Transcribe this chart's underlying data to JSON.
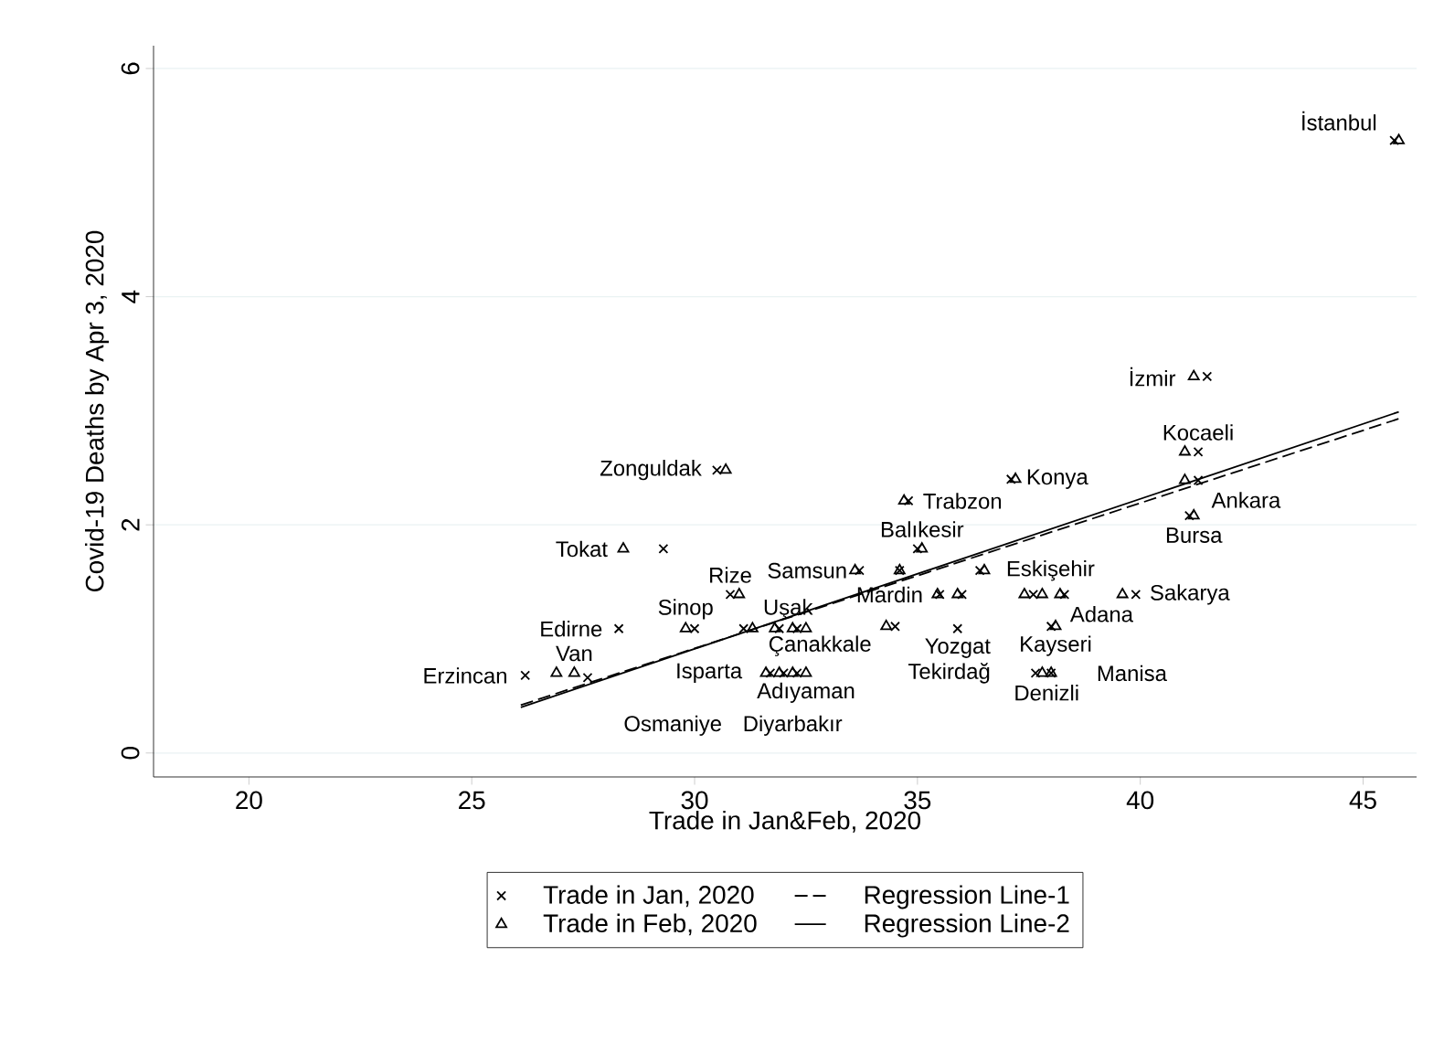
{
  "chart_data": {
    "type": "scatter",
    "xlabel": "Trade in Jan&Feb, 2020",
    "ylabel": "Covid-19 Deaths by Apr 3, 2020",
    "xlim": [
      17.86,
      46.2
    ],
    "ylim": [
      -0.21,
      6.2
    ],
    "xticks": [
      20,
      25,
      30,
      35,
      40,
      45
    ],
    "yticks": [
      0,
      2,
      4,
      6
    ],
    "grid": "y",
    "legend": "bottom",
    "series": [
      {
        "name": "Trade in Jan, 2020",
        "marker": "cross",
        "color": "#000000",
        "x": [
          45.7,
          41.5,
          41.3,
          41.3,
          37.1,
          34.8,
          30.5,
          29.3,
          35.0,
          33.7,
          34.6,
          36.4,
          35.5,
          36.0,
          37.6,
          38.3,
          39.9,
          38.0,
          35.9,
          34.5,
          37.65,
          38.0,
          31.7,
          32.0,
          32.3,
          28.3,
          30.0,
          31.1,
          31.9,
          32.3,
          30.8,
          27.6,
          26.2,
          41.1
        ],
        "values": [
          5.37,
          3.3,
          2.64,
          2.39,
          2.4,
          2.21,
          2.48,
          1.79,
          1.79,
          1.6,
          1.6,
          1.6,
          1.39,
          1.39,
          1.39,
          1.39,
          1.39,
          1.11,
          1.09,
          1.11,
          0.7,
          0.7,
          0.7,
          0.7,
          0.7,
          1.09,
          1.09,
          1.09,
          1.09,
          1.09,
          1.39,
          0.66,
          0.68,
          2.08
        ]
      },
      {
        "name": "Regression Line-1",
        "type": "line",
        "line_style": "dashed",
        "color": "#000000",
        "x": [
          26.1,
          45.8
        ],
        "values": [
          0.42,
          2.93
        ]
      },
      {
        "name": "Trade in Feb, 2020",
        "marker": "triangle",
        "color": "#000000",
        "x": [
          45.8,
          41.2,
          41.0,
          41.0,
          41.2,
          37.2,
          34.7,
          30.7,
          28.4,
          35.1,
          33.6,
          34.6,
          36.5,
          35.45,
          35.9,
          37.4,
          37.8,
          38.2,
          39.6,
          38.1,
          34.3,
          37.8,
          38.0,
          31.6,
          31.9,
          32.2,
          32.5,
          29.8,
          31.3,
          31.8,
          32.2,
          32.5,
          31.0,
          26.9,
          27.3
        ],
        "values": [
          5.37,
          3.3,
          2.64,
          2.39,
          2.08,
          2.4,
          2.21,
          2.48,
          1.79,
          1.79,
          1.6,
          1.6,
          1.6,
          1.39,
          1.39,
          1.39,
          1.39,
          1.39,
          1.39,
          1.11,
          1.11,
          0.7,
          0.7,
          0.7,
          0.7,
          0.7,
          0.7,
          1.09,
          1.09,
          1.09,
          1.09,
          1.09,
          1.39,
          0.7,
          0.7
        ]
      },
      {
        "name": "Regression Line-2",
        "type": "line",
        "line_style": "solid",
        "color": "#000000",
        "x": [
          26.1,
          45.8
        ],
        "values": [
          0.4,
          2.99
        ]
      }
    ],
    "annotations": [
      {
        "text": "İstanbul",
        "x": 45.8,
        "y": 5.37
      },
      {
        "text": "İzmir",
        "x": 41.2,
        "y": 3.3
      },
      {
        "text": "Kocaeli",
        "x": 41.3,
        "y": 2.64
      },
      {
        "text": "Ankara",
        "x": 41.3,
        "y": 2.39
      },
      {
        "text": "Bursa",
        "x": 41.2,
        "y": 2.08
      },
      {
        "text": "Konya",
        "x": 37.2,
        "y": 2.4
      },
      {
        "text": "Trabzon",
        "x": 34.8,
        "y": 2.21
      },
      {
        "text": "Zonguldak",
        "x": 30.5,
        "y": 2.48
      },
      {
        "text": "Tokat",
        "x": 28.4,
        "y": 1.79
      },
      {
        "text": "Balıkesir",
        "x": 35.1,
        "y": 1.79
      },
      {
        "text": "Samsun",
        "x": 33.6,
        "y": 1.6
      },
      {
        "text": "Eskişehir",
        "x": 36.5,
        "y": 1.6
      },
      {
        "text": "Mardin",
        "x": 35.45,
        "y": 1.39
      },
      {
        "text": "Adana",
        "x": 38.2,
        "y": 1.39
      },
      {
        "text": "Sakarya",
        "x": 39.9,
        "y": 1.39
      },
      {
        "text": "Kayseri",
        "x": 38.1,
        "y": 1.11
      },
      {
        "text": "Yozgat",
        "x": 35.9,
        "y": 1.09
      },
      {
        "text": "Çanakkale",
        "x": 34.3,
        "y": 1.11
      },
      {
        "text": "Denizli",
        "x": 37.9,
        "y": 0.7
      },
      {
        "text": "Manisa",
        "x": 38.0,
        "y": 0.7
      },
      {
        "text": "Tekirdağ",
        "x": 37.8,
        "y": 0.7
      },
      {
        "text": "Adıyaman",
        "x": 32.5,
        "y": 0.7
      },
      {
        "text": "Diyarbakır",
        "x": 32.2,
        "y": 0.7
      },
      {
        "text": "Isparta",
        "x": 31.9,
        "y": 0.7
      },
      {
        "text": "Osmaniye",
        "x": 31.6,
        "y": 0.7
      },
      {
        "text": "Sinop",
        "x": 29.8,
        "y": 1.09
      },
      {
        "text": "Van",
        "x": 27.3,
        "y": 0.7
      },
      {
        "text": "Erzincan",
        "x": 26.2,
        "y": 0.68
      },
      {
        "text": "Edirne",
        "x": 28.3,
        "y": 1.09
      },
      {
        "text": "Rize",
        "x": 30.8,
        "y": 1.39
      },
      {
        "text": "Uşak",
        "x": 31.3,
        "y": 1.09
      }
    ]
  }
}
